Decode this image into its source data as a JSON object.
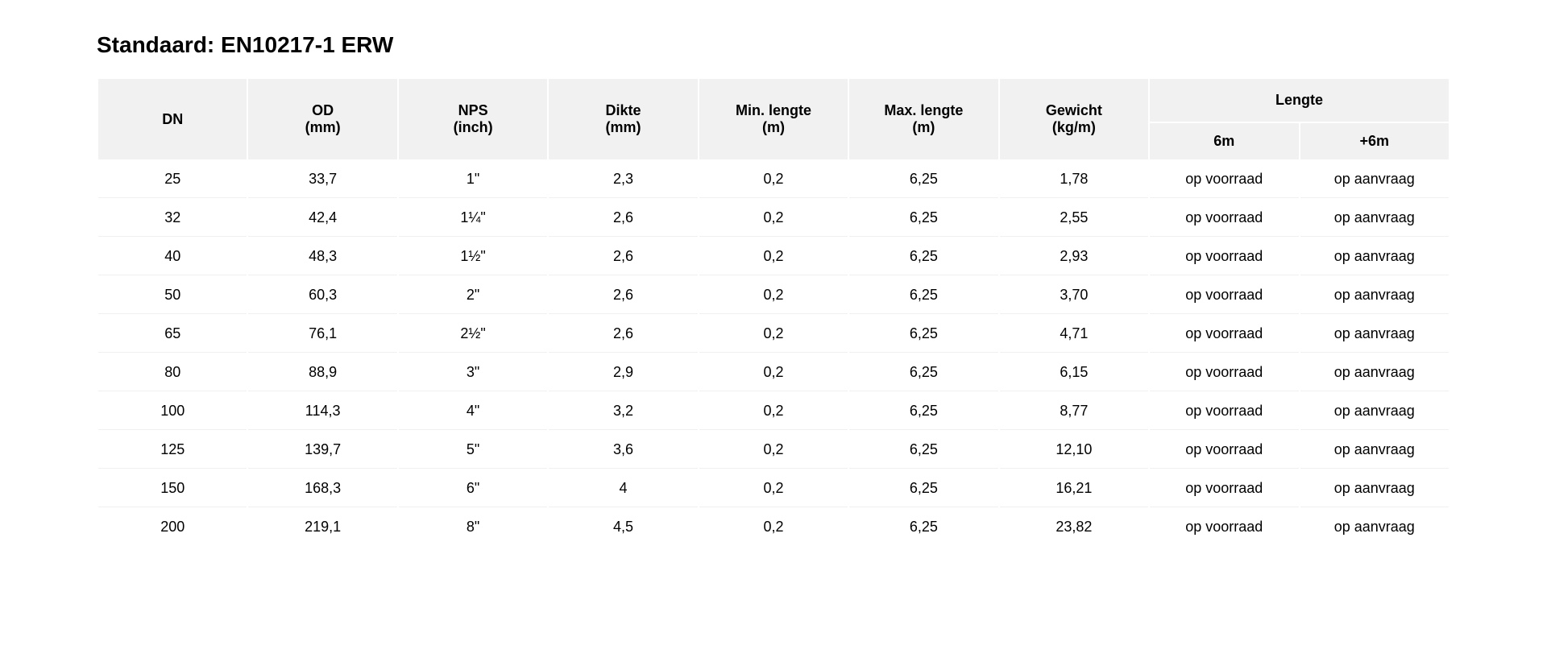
{
  "title": "Standaard: EN10217-1 ERW",
  "table": {
    "columns": {
      "dn": "DN",
      "od": "OD\n(mm)",
      "nps": "NPS\n(inch)",
      "dikte": "Dikte\n(mm)",
      "min_lengte": "Min. lengte\n(m)",
      "max_lengte": "Max. lengte\n(m)",
      "gewicht": "Gewicht\n(kg/m)",
      "lengte_group": "Lengte",
      "lengte_6m": "6m",
      "lengte_plus6m": "+6m"
    },
    "header_background": "#f1f1f1",
    "cell_background": "#ffffff",
    "text_color": "#000000",
    "font_size_header": 18,
    "font_size_body": 18,
    "rows": [
      {
        "dn": "25",
        "od": "33,7",
        "nps": "1\"",
        "dikte": "2,3",
        "min": "0,2",
        "max": "6,25",
        "gew": "1,78",
        "l6": "op voorraad",
        "lp6": "op aanvraag"
      },
      {
        "dn": "32",
        "od": "42,4",
        "nps": "1¼\"",
        "dikte": "2,6",
        "min": "0,2",
        "max": "6,25",
        "gew": "2,55",
        "l6": "op voorraad",
        "lp6": "op aanvraag"
      },
      {
        "dn": "40",
        "od": "48,3",
        "nps": "1½\"",
        "dikte": "2,6",
        "min": "0,2",
        "max": "6,25",
        "gew": "2,93",
        "l6": "op voorraad",
        "lp6": "op aanvraag"
      },
      {
        "dn": "50",
        "od": "60,3",
        "nps": "2\"",
        "dikte": "2,6",
        "min": "0,2",
        "max": "6,25",
        "gew": "3,70",
        "l6": "op voorraad",
        "lp6": "op aanvraag"
      },
      {
        "dn": "65",
        "od": "76,1",
        "nps": "2½\"",
        "dikte": "2,6",
        "min": "0,2",
        "max": "6,25",
        "gew": "4,71",
        "l6": "op voorraad",
        "lp6": "op aanvraag"
      },
      {
        "dn": "80",
        "od": "88,9",
        "nps": "3\"",
        "dikte": "2,9",
        "min": "0,2",
        "max": "6,25",
        "gew": "6,15",
        "l6": "op voorraad",
        "lp6": "op aanvraag"
      },
      {
        "dn": "100",
        "od": "114,3",
        "nps": "4\"",
        "dikte": "3,2",
        "min": "0,2",
        "max": "6,25",
        "gew": "8,77",
        "l6": "op voorraad",
        "lp6": "op aanvraag"
      },
      {
        "dn": "125",
        "od": "139,7",
        "nps": "5\"",
        "dikte": "3,6",
        "min": "0,2",
        "max": "6,25",
        "gew": "12,10",
        "l6": "op voorraad",
        "lp6": "op aanvraag"
      },
      {
        "dn": "150",
        "od": "168,3",
        "nps": "6\"",
        "dikte": "4",
        "min": "0,2",
        "max": "6,25",
        "gew": "16,21",
        "l6": "op voorraad",
        "lp6": "op aanvraag"
      },
      {
        "dn": "200",
        "od": "219,1",
        "nps": "8\"",
        "dikte": "4,5",
        "min": "0,2",
        "max": "6,25",
        "gew": "23,82",
        "l6": "op voorraad",
        "lp6": "op aanvraag"
      }
    ]
  }
}
